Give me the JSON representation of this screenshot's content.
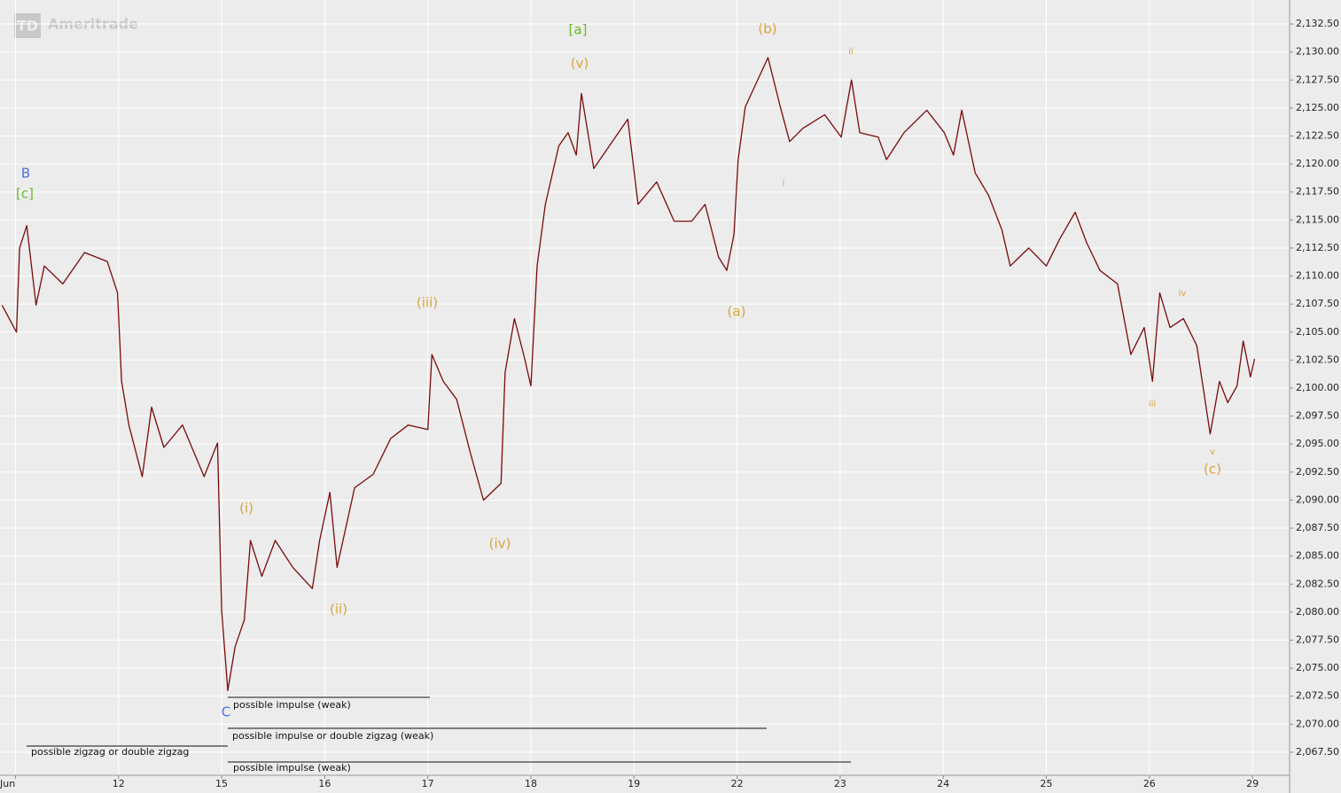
{
  "chart_data": {
    "type": "line",
    "watermark": {
      "logo": "TD",
      "text": "Ameritrade"
    },
    "color": "#7a0a0a",
    "x": [
      -0.13,
      0.01,
      0.04,
      0.11,
      0.2,
      0.28,
      0.46,
      0.67,
      0.89,
      0.99,
      1.03,
      1.1,
      1.23,
      1.32,
      1.44,
      1.62,
      1.83,
      1.96,
      2.0,
      2.06,
      2.13,
      2.22,
      2.28,
      2.39,
      2.52,
      2.69,
      2.88,
      2.95,
      3.05,
      3.12,
      3.29,
      3.47,
      3.64,
      3.81,
      4.0,
      4.04,
      4.15,
      4.28,
      4.41,
      4.54,
      4.71,
      4.75,
      4.84,
      4.93,
      5.0,
      5.06,
      5.14,
      5.27,
      5.36,
      5.44,
      5.49,
      5.61,
      5.79,
      5.94,
      6.04,
      6.22,
      6.39,
      6.56,
      6.69,
      6.82,
      6.9,
      6.97,
      7.01,
      7.08,
      7.16,
      7.3,
      7.42,
      7.51,
      7.64,
      7.85,
      8.01,
      8.11,
      8.19,
      8.37,
      8.45,
      8.62,
      8.84,
      9.01,
      9.1,
      9.18,
      9.31,
      9.44,
      9.57,
      9.65,
      9.83,
      10.0,
      10.13,
      10.28,
      10.39,
      10.52,
      10.69,
      10.82,
      10.95,
      11.03,
      11.1,
      11.2,
      11.33,
      11.46,
      11.59,
      11.68,
      11.76,
      11.85,
      11.91,
      11.98,
      12.02
    ],
    "values": [
      2107.4,
      2105,
      2112.5,
      2114.5,
      2107.4,
      2110.9,
      2109.3,
      2112.1,
      2111.3,
      2108.5,
      2100.6,
      2096.7,
      2092.1,
      2098.3,
      2094.7,
      2096.7,
      2092.1,
      2095.1,
      2080.1,
      2073,
      2076.9,
      2079.3,
      2086.4,
      2083.2,
      2086.4,
      2084.0,
      2082.1,
      2086.4,
      2090.7,
      2084.0,
      2091.1,
      2092.3,
      2095.5,
      2096.7,
      2096.3,
      2103,
      2100.6,
      2099,
      2094.3,
      2090.0,
      2091.5,
      2101.4,
      2106.2,
      2103,
      2100.2,
      2110.9,
      2116.4,
      2121.6,
      2122.8,
      2120.8,
      2126.3,
      2119.6,
      2122,
      2124,
      2116.4,
      2118.4,
      2114.9,
      2114.9,
      2116.4,
      2111.7,
      2110.5,
      2113.7,
      2120.4,
      2125.1,
      2126.7,
      2129.5,
      2125.1,
      2122,
      2123.2,
      2124.4,
      2122.4,
      2127.5,
      2122.8,
      2122.4,
      2120.4,
      2122.8,
      2124.8,
      2122.8,
      2120.8,
      2124.8,
      2119.2,
      2117.2,
      2114.1,
      2110.9,
      2112.5,
      2110.9,
      2113.3,
      2115.7,
      2113,
      2110.5,
      2109.3,
      2103,
      2105.4,
      2100.6,
      2108.5,
      2105.4,
      2106.2,
      2103.8,
      2095.9,
      2100.6,
      2098.7,
      2100.2,
      2104.2,
      2101,
      2102.6
    ],
    "xlim": [
      -0.15,
      12.36
    ],
    "xticks": [
      {
        "value": 0,
        "label": "Jun"
      },
      {
        "value": 1,
        "label": "12"
      },
      {
        "value": 2,
        "label": "15"
      },
      {
        "value": 3,
        "label": "16"
      },
      {
        "value": 4,
        "label": "17"
      },
      {
        "value": 5,
        "label": "18"
      },
      {
        "value": 6,
        "label": "19"
      },
      {
        "value": 7,
        "label": "22"
      },
      {
        "value": 8,
        "label": "23"
      },
      {
        "value": 9,
        "label": "24"
      },
      {
        "value": 10,
        "label": "25"
      },
      {
        "value": 11,
        "label": "26"
      },
      {
        "value": 12,
        "label": "29"
      }
    ],
    "ylim": [
      2065.44,
      2134.64
    ],
    "yticks": [
      {
        "value": 2067.5,
        "label": "2,067.50"
      },
      {
        "value": 2070,
        "label": "2,070.00"
      },
      {
        "value": 2072.5,
        "label": "2,072.50"
      },
      {
        "value": 2075,
        "label": "2,075.00"
      },
      {
        "value": 2077.5,
        "label": "2,077.50"
      },
      {
        "value": 2080,
        "label": "2,080.00"
      },
      {
        "value": 2082.5,
        "label": "2,082.50"
      },
      {
        "value": 2085,
        "label": "2,085.00"
      },
      {
        "value": 2087.5,
        "label": "2,087.50"
      },
      {
        "value": 2090,
        "label": "2,090.00"
      },
      {
        "value": 2092.5,
        "label": "2,092.50"
      },
      {
        "value": 2095,
        "label": "2,095.00"
      },
      {
        "value": 2097.5,
        "label": "2,097.50"
      },
      {
        "value": 2100,
        "label": "2,100.00"
      },
      {
        "value": 2102.5,
        "label": "2,102.50"
      },
      {
        "value": 2105,
        "label": "2,105.00"
      },
      {
        "value": 2107.5,
        "label": "2,107.50"
      },
      {
        "value": 2110,
        "label": "2,110.00"
      },
      {
        "value": 2112.5,
        "label": "2,112.50"
      },
      {
        "value": 2115,
        "label": "2,115.00"
      },
      {
        "value": 2117.5,
        "label": "2,117.50"
      },
      {
        "value": 2120,
        "label": "2,120.00"
      },
      {
        "value": 2122.5,
        "label": "2,122.50"
      },
      {
        "value": 2125,
        "label": "2,125.00"
      },
      {
        "value": 2127.5,
        "label": "2,127.50"
      },
      {
        "value": 2130,
        "label": "2,130.00"
      },
      {
        "value": 2132.5,
        "label": "2,132.50"
      }
    ],
    "grid": true,
    "annotations": [
      {
        "text": "B",
        "color": "#4a6fe0"
      },
      {
        "text": "[c]",
        "color": "#6ab82a"
      },
      {
        "text": "[a]",
        "color": "#6ab82a"
      },
      {
        "text": "(v)",
        "color": "#d9a43a"
      },
      {
        "text": "(b)",
        "color": "#d9a43a"
      },
      {
        "text": "ii",
        "color": "#d9a43a"
      },
      {
        "text": "i",
        "color": "#d9a43a"
      },
      {
        "text": "(a)",
        "color": "#d9a43a"
      },
      {
        "text": "(iii)",
        "color": "#d9a43a"
      },
      {
        "text": "(i)",
        "color": "#d9a43a"
      },
      {
        "text": "(ii)",
        "color": "#d9a43a"
      },
      {
        "text": "(iv)",
        "color": "#d9a43a"
      },
      {
        "text": "C",
        "color": "#4a6fe0"
      },
      {
        "text": "iii",
        "color": "#d9a43a"
      },
      {
        "text": "iv",
        "color": "#d9a43a"
      },
      {
        "text": "v",
        "color": "#d9a43a"
      },
      {
        "text": "(c)",
        "color": "#d9a43a"
      }
    ],
    "notes": [
      "possible impulse (weak)",
      "possible impulse or double zigzag (weak)",
      "possible zigzag or double zigzag",
      "possible impulse (weak)"
    ]
  }
}
